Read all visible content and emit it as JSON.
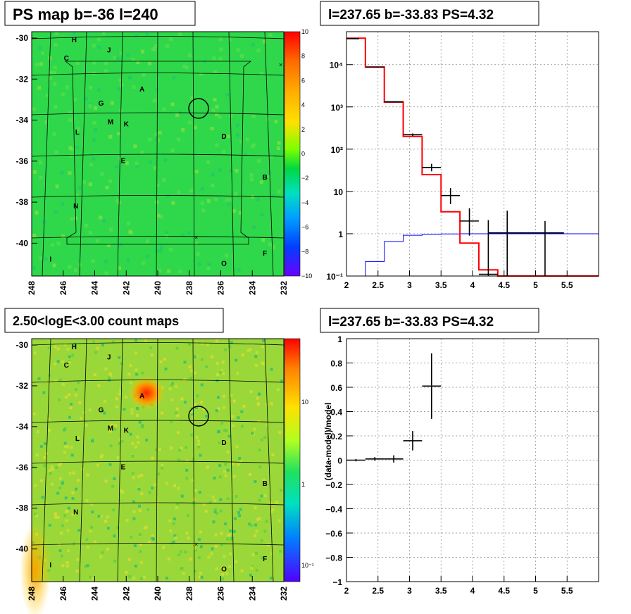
{
  "colors": {
    "map_bg": "#2fd84a",
    "count_bg": "#9ad83a",
    "axis": "#000000",
    "model": "#ff0000",
    "aux": "#0000ff"
  },
  "chart_data": [
    {
      "id": "ps_map",
      "type": "heatmap",
      "title": "PS map b=-36 l=240",
      "x_ticks": [
        "248",
        "246",
        "244",
        "242",
        "240",
        "238",
        "236",
        "234",
        "232"
      ],
      "y_ticks": [
        "-30",
        "-32",
        "-34",
        "-36",
        "-38",
        "-40"
      ],
      "colorbar_ticks": [
        "10",
        "8",
        "6",
        "4",
        "2",
        "0",
        "−2",
        "−4",
        "−6",
        "−8",
        "−10"
      ],
      "sources": [
        {
          "label": "H",
          "l": 245.3,
          "b": -30.2
        },
        {
          "label": "J",
          "l": 243.1,
          "b": -30.7
        },
        {
          "label": "C",
          "l": 245.8,
          "b": -31.1
        },
        {
          "label": "A",
          "l": 241.0,
          "b": -32.6
        },
        {
          "label": "G",
          "l": 243.6,
          "b": -33.3
        },
        {
          "label": "M",
          "l": 243.0,
          "b": -34.2
        },
        {
          "label": "K",
          "l": 242.0,
          "b": -34.3
        },
        {
          "label": "L",
          "l": 245.1,
          "b": -34.7
        },
        {
          "label": "D",
          "l": 235.8,
          "b": -34.9
        },
        {
          "label": "E",
          "l": 242.2,
          "b": -36.1
        },
        {
          "label": "B",
          "l": 233.2,
          "b": -36.9
        },
        {
          "label": "N",
          "l": 245.2,
          "b": -38.3
        },
        {
          "label": "I",
          "l": 246.8,
          "b": -40.9
        },
        {
          "label": "F",
          "l": 233.2,
          "b": -40.6
        },
        {
          "label": "O",
          "l": 235.8,
          "b": -41.1
        }
      ]
    },
    {
      "id": "spectrum",
      "type": "line",
      "title": "l=237.65 b=-33.83 PS=4.32",
      "xlim": [
        2,
        6
      ],
      "ylim": [
        0.1,
        60000
      ],
      "log_y": true,
      "grid": true,
      "x_ticks": [
        "2",
        "2.5",
        "3",
        "3.5",
        "4",
        "4.5",
        "5",
        "5.5"
      ],
      "y_ticks": [
        {
          "text": "10⁻¹",
          "v": 0.1
        },
        {
          "text": "1",
          "v": 1
        },
        {
          "text": "10",
          "v": 10
        },
        {
          "text": "10²",
          "v": 100
        },
        {
          "text": "10³",
          "v": 1000
        },
        {
          "text": "10⁴",
          "v": 10000
        }
      ],
      "model": {
        "edges": [
          2.0,
          2.3,
          2.6,
          2.9,
          3.2,
          3.5,
          3.8,
          4.1,
          4.4,
          6.0
        ],
        "values": [
          42000,
          8800,
          1300,
          200,
          25,
          3.3,
          0.6,
          0.14,
          0.1
        ]
      },
      "aux": {
        "edges": [
          2.0,
          2.3,
          2.6,
          2.9,
          3.2,
          3.5,
          3.8,
          4.1,
          4.4,
          6.0
        ],
        "values": [
          0.07,
          0.22,
          0.65,
          0.92,
          0.97,
          0.99,
          1.0,
          1.0,
          1.0
        ]
      },
      "data": [
        {
          "x": 2.1,
          "y": 41000,
          "xerr": 0.1,
          "lo": 40000,
          "hi": 42000
        },
        {
          "x": 2.45,
          "y": 8700,
          "xerr": 0.15,
          "lo": 8500,
          "hi": 8900
        },
        {
          "x": 2.75,
          "y": 1320,
          "xerr": 0.15,
          "lo": 1280,
          "hi": 1360
        },
        {
          "x": 3.05,
          "y": 220,
          "xerr": 0.15,
          "lo": 205,
          "hi": 235
        },
        {
          "x": 3.35,
          "y": 37,
          "xerr": 0.15,
          "lo": 30,
          "hi": 45
        },
        {
          "x": 3.65,
          "y": 8,
          "xerr": 0.15,
          "lo": 5,
          "hi": 12
        },
        {
          "x": 3.95,
          "y": 2,
          "xerr": 0.15,
          "lo": 0.9,
          "hi": 4
        },
        {
          "x": 4.25,
          "y": 0.11,
          "xerr": 0.15,
          "lo": 0.1,
          "hi": 2.1
        },
        {
          "x": 4.55,
          "y": 1.05,
          "xerr": 0.3,
          "lo": 0.1,
          "hi": 3.5
        },
        {
          "x": 5.15,
          "y": 1.05,
          "xerr": 0.3,
          "lo": 0.1,
          "hi": 2
        }
      ]
    },
    {
      "id": "count_map",
      "type": "heatmap",
      "title": "2.50<logE<3.00 count maps",
      "x_ticks": [
        "248",
        "246",
        "244",
        "242",
        "240",
        "238",
        "236",
        "234",
        "232"
      ],
      "y_ticks": [
        "-30",
        "-32",
        "-34",
        "-36",
        "-38",
        "-40"
      ],
      "colorbar_ticks": [
        "10",
        "1",
        "10⁻¹"
      ]
    },
    {
      "id": "residuals",
      "type": "scatter",
      "title": "l=237.65 b=-33.83 PS=4.32",
      "ylabel": "(data-model)/model",
      "xlim": [
        2,
        6
      ],
      "ylim": [
        -1,
        1
      ],
      "grid": true,
      "x_ticks": [
        "2",
        "2.5",
        "3",
        "3.5",
        "4",
        "4.5",
        "5",
        "5.5"
      ],
      "y_ticks": [
        "1",
        "0.8",
        "0.6",
        "0.4",
        "0.2",
        "0",
        "−0.2",
        "−0.4",
        "−0.6",
        "−0.8",
        "−1"
      ],
      "points": [
        {
          "x": 2.15,
          "y": 0.0,
          "xerr": 0.15,
          "yerr": 0.01
        },
        {
          "x": 2.45,
          "y": 0.01,
          "xerr": 0.15,
          "yerr": 0.015
        },
        {
          "x": 2.75,
          "y": 0.01,
          "xerr": 0.15,
          "yerr": 0.03
        },
        {
          "x": 3.05,
          "y": 0.16,
          "xerr": 0.15,
          "yerr": 0.08
        },
        {
          "x": 3.35,
          "y": 0.61,
          "xerr": 0.15,
          "yerr": 0.27
        }
      ]
    }
  ]
}
